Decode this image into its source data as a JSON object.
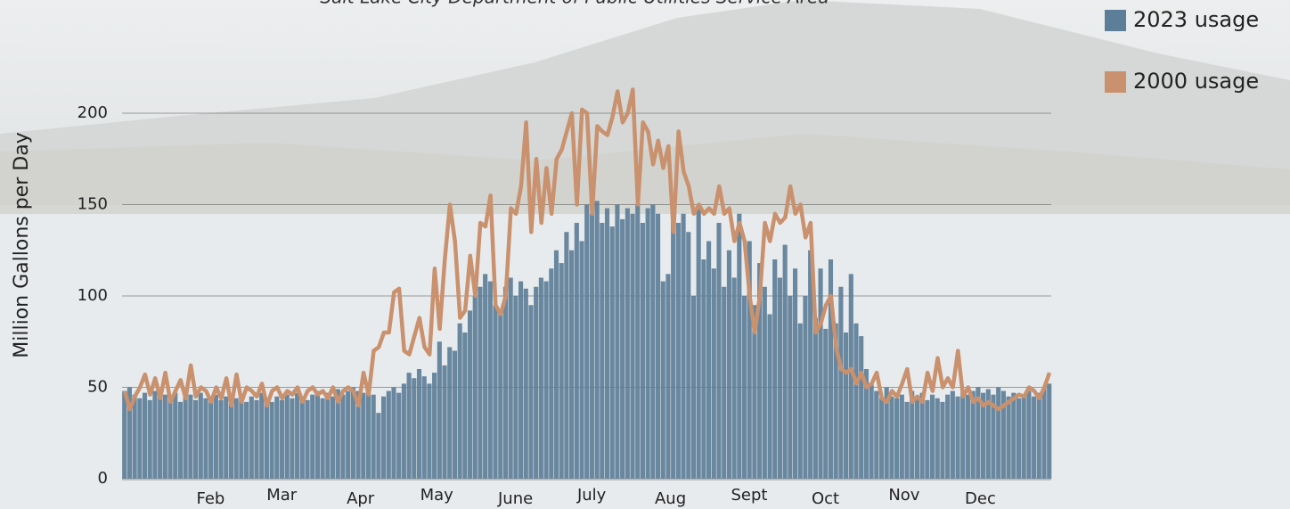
{
  "chart_data": {
    "type": "bar-line",
    "subtitle": "Salt Lake City Department of Public Utilities Service Area",
    "y_label": "Million Gallons per Day",
    "xlim": [
      1,
      365
    ],
    "xticks": [
      {
        "value": 32,
        "label": "Feb"
      },
      {
        "value": 60,
        "label": "Mar"
      },
      {
        "value": 91,
        "label": "Apr"
      },
      {
        "value": 121,
        "label": "May"
      },
      {
        "value": 152,
        "label": "June"
      },
      {
        "value": 182,
        "label": "July"
      },
      {
        "value": 213,
        "label": "Aug"
      },
      {
        "value": 244,
        "label": "Sept"
      },
      {
        "value": 274,
        "label": "Oct"
      },
      {
        "value": 305,
        "label": "Nov"
      },
      {
        "value": 335,
        "label": "Dec"
      }
    ],
    "ylim": [
      0,
      200
    ],
    "yticks": [
      0,
      50,
      100,
      150,
      200
    ],
    "grid": true,
    "legend": "top-right",
    "x": [
      1,
      3,
      5,
      7,
      9,
      11,
      13,
      15,
      17,
      19,
      21,
      23,
      25,
      27,
      29,
      31,
      33,
      35,
      37,
      39,
      41,
      43,
      45,
      47,
      49,
      51,
      53,
      55,
      57,
      59,
      61,
      63,
      65,
      67,
      69,
      71,
      73,
      75,
      77,
      79,
      81,
      83,
      85,
      87,
      89,
      91,
      93,
      95,
      97,
      99,
      101,
      103,
      105,
      107,
      109,
      111,
      113,
      115,
      117,
      119,
      121,
      123,
      125,
      127,
      129,
      131,
      133,
      135,
      137,
      139,
      141,
      143,
      145,
      147,
      149,
      151,
      153,
      155,
      157,
      159,
      161,
      163,
      165,
      167,
      169,
      171,
      173,
      175,
      177,
      179,
      181,
      183,
      185,
      187,
      189,
      191,
      193,
      195,
      197,
      199,
      201,
      203,
      205,
      207,
      209,
      211,
      213,
      215,
      217,
      219,
      221,
      223,
      225,
      227,
      229,
      231,
      233,
      235,
      237,
      239,
      241,
      243,
      245,
      247,
      249,
      251,
      253,
      255,
      257,
      259,
      261,
      263,
      265,
      267,
      269,
      271,
      273,
      275,
      277,
      279,
      281,
      283,
      285,
      287,
      289,
      291,
      293,
      295,
      297,
      299,
      301,
      303,
      305,
      307,
      309,
      311,
      313,
      315,
      317,
      319,
      321,
      323,
      325,
      327,
      329,
      331,
      333,
      335,
      337,
      339,
      341,
      343,
      345,
      347,
      349,
      351,
      353,
      355,
      357,
      359,
      361,
      363,
      365
    ],
    "series": [
      {
        "name": "2023 usage",
        "kind": "bar",
        "color": "#5d7e98",
        "values": [
          48,
          50,
          46,
          44,
          47,
          43,
          48,
          45,
          46,
          44,
          47,
          42,
          45,
          46,
          43,
          47,
          44,
          42,
          46,
          43,
          45,
          41,
          44,
          46,
          42,
          45,
          43,
          47,
          44,
          42,
          45,
          43,
          46,
          44,
          47,
          45,
          43,
          46,
          48,
          44,
          47,
          45,
          49,
          46,
          48,
          50,
          48,
          47,
          49,
          46,
          36,
          45,
          48,
          50,
          47,
          52,
          58,
          55,
          60,
          56,
          52,
          58,
          75,
          62,
          72,
          70,
          85,
          80,
          92,
          100,
          105,
          112,
          108,
          95,
          90,
          105,
          110,
          100,
          108,
          104,
          95,
          105,
          110,
          108,
          115,
          125,
          118,
          135,
          125,
          140,
          130,
          150,
          145,
          152,
          140,
          148,
          138,
          150,
          142,
          148,
          145,
          150,
          140,
          148,
          150,
          145,
          108,
          112,
          148,
          140,
          145,
          135,
          100,
          148,
          120,
          130,
          115,
          140,
          105,
          125,
          110,
          145,
          100,
          130,
          95,
          118,
          105,
          90,
          120,
          110,
          128,
          100,
          115,
          85,
          100,
          125,
          88,
          115,
          82,
          120,
          85,
          105,
          80,
          112,
          85,
          78,
          60,
          52,
          48,
          44,
          50,
          45,
          44,
          46,
          42,
          48,
          45,
          47,
          43,
          46,
          44,
          42,
          46,
          48,
          45,
          47,
          46,
          48,
          50,
          47,
          49,
          46,
          50,
          48,
          45,
          47,
          44,
          46,
          48,
          45,
          47,
          50,
          52
        ]
      },
      {
        "name": "2000 usage",
        "kind": "line",
        "color": "#c9916d",
        "values": [
          48,
          38,
          45,
          50,
          57,
          46,
          55,
          44,
          58,
          42,
          48,
          54,
          44,
          62,
          45,
          50,
          48,
          42,
          50,
          44,
          55,
          40,
          57,
          42,
          50,
          48,
          45,
          52,
          40,
          48,
          50,
          44,
          48,
          46,
          50,
          42,
          48,
          50,
          46,
          48,
          44,
          50,
          42,
          48,
          50,
          48,
          40,
          58,
          46,
          70,
          72,
          80,
          80,
          102,
          104,
          70,
          68,
          78,
          88,
          72,
          68,
          115,
          82,
          120,
          150,
          130,
          88,
          92,
          122,
          100,
          140,
          138,
          155,
          95,
          90,
          100,
          148,
          145,
          160,
          195,
          135,
          175,
          140,
          170,
          145,
          175,
          180,
          190,
          200,
          150,
          202,
          200,
          145,
          193,
          190,
          188,
          198,
          212,
          195,
          200,
          213,
          150,
          195,
          190,
          172,
          185,
          170,
          182,
          135,
          190,
          168,
          160,
          145,
          150,
          145,
          148,
          145,
          160,
          145,
          148,
          130,
          140,
          130,
          100,
          80,
          100,
          140,
          130,
          145,
          140,
          143,
          160,
          145,
          150,
          132,
          140,
          80,
          85,
          95,
          100,
          72,
          60,
          58,
          60,
          52,
          58,
          50,
          52,
          58,
          44,
          42,
          48,
          45,
          52,
          60,
          42,
          45,
          42,
          58,
          48,
          66,
          50,
          55,
          50,
          70,
          45,
          50,
          42,
          44,
          40,
          42,
          40,
          38,
          40,
          42,
          44,
          46,
          45,
          50,
          48,
          44,
          50,
          58
        ]
      }
    ]
  }
}
